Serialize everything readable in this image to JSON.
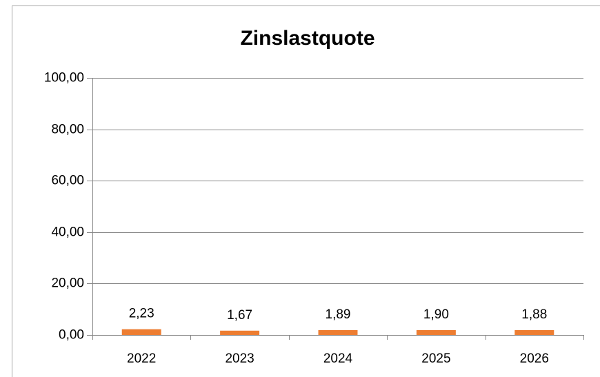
{
  "chart_data": {
    "type": "bar",
    "title": "Zinslastquote",
    "categories": [
      "2022",
      "2023",
      "2024",
      "2025",
      "2026"
    ],
    "values": [
      2.23,
      1.67,
      1.89,
      1.9,
      1.88
    ],
    "value_labels": [
      "2,23",
      "1,67",
      "1,89",
      "1,90",
      "1,88"
    ],
    "color": "#ed7d31",
    "ylim": [
      0,
      100
    ],
    "yticks": [
      {
        "value": 0,
        "label": "0,00"
      },
      {
        "value": 20,
        "label": "20,00"
      },
      {
        "value": 40,
        "label": "40,00"
      },
      {
        "value": 60,
        "label": "60,00"
      },
      {
        "value": 80,
        "label": "80,00"
      },
      {
        "value": 100,
        "label": "100,00"
      }
    ],
    "grid": true
  }
}
